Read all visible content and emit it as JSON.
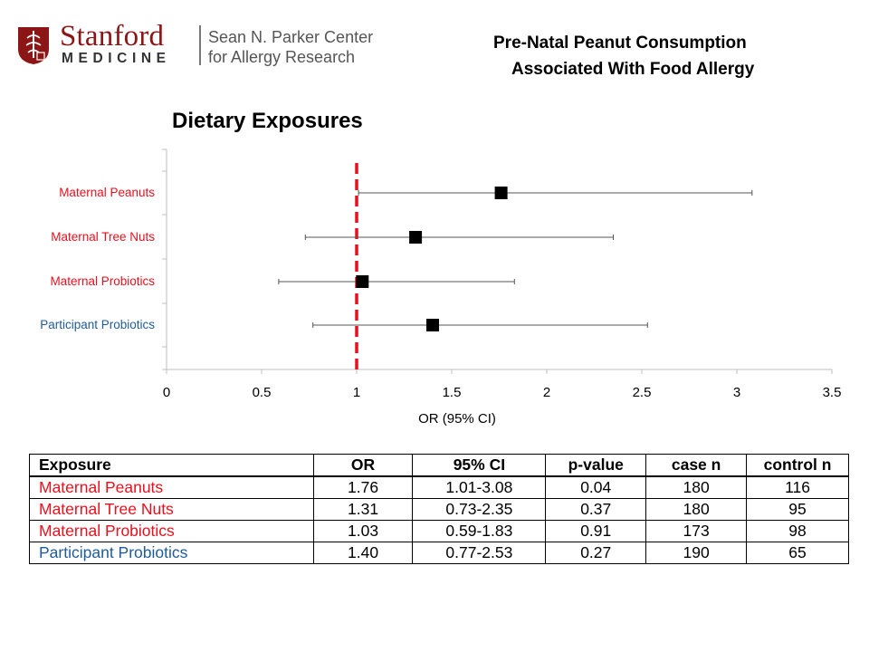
{
  "header": {
    "logo_word": "Stanford",
    "logo_sub": "MEDICINE",
    "center_line1": "Sean N. Parker Center",
    "center_line2": "for Allergy Research",
    "title_line1": "Pre-Natal Peanut Consumption",
    "title_line2": "Associated With Food Allergy"
  },
  "colors": {
    "brand": "#8c1515",
    "maternal_label": "#e8101e",
    "participant_label": "#1f5c99",
    "reference_line": "#e8101e"
  },
  "chart_data": {
    "type": "forest",
    "title": "Dietary Exposures",
    "xlabel": "OR (95% CI)",
    "xlim": [
      0,
      3.5
    ],
    "xticks": [
      "0",
      "0.5",
      "1",
      "1.5",
      "2",
      "2.5",
      "3",
      "3.5"
    ],
    "reference_x": 1,
    "rows": [
      {
        "label": "Maternal Peanuts",
        "or": 1.76,
        "lo": 1.01,
        "hi": 3.08,
        "color": "#e8101e"
      },
      {
        "label": "Maternal Tree Nuts",
        "or": 1.31,
        "lo": 0.73,
        "hi": 2.35,
        "color": "#e8101e"
      },
      {
        "label": "Maternal Probiotics",
        "or": 1.03,
        "lo": 0.59,
        "hi": 1.83,
        "color": "#e8101e"
      },
      {
        "label": "Participant Probiotics",
        "or": 1.4,
        "lo": 0.77,
        "hi": 2.53,
        "color": "#1f5c99"
      }
    ]
  },
  "table": {
    "headers": [
      "Exposure",
      "OR",
      "95% CI",
      "p-value",
      "case n",
      "control n"
    ],
    "rows": [
      {
        "exposure": "Maternal Peanuts",
        "or": "1.76",
        "ci": "1.01-3.08",
        "p": "0.04",
        "case_n": "180",
        "control_n": "116",
        "color": "#e8101e"
      },
      {
        "exposure": "Maternal Tree Nuts",
        "or": "1.31",
        "ci": "0.73-2.35",
        "p": "0.37",
        "case_n": "180",
        "control_n": "95",
        "color": "#e8101e"
      },
      {
        "exposure": "Maternal Probiotics",
        "or": "1.03",
        "ci": "0.59-1.83",
        "p": "0.91",
        "case_n": "173",
        "control_n": "98",
        "color": "#e8101e"
      },
      {
        "exposure": "Participant Probiotics",
        "or": "1.40",
        "ci": "0.77-2.53",
        "p": "0.27",
        "case_n": "190",
        "control_n": "65",
        "color": "#1f5c99"
      }
    ]
  }
}
